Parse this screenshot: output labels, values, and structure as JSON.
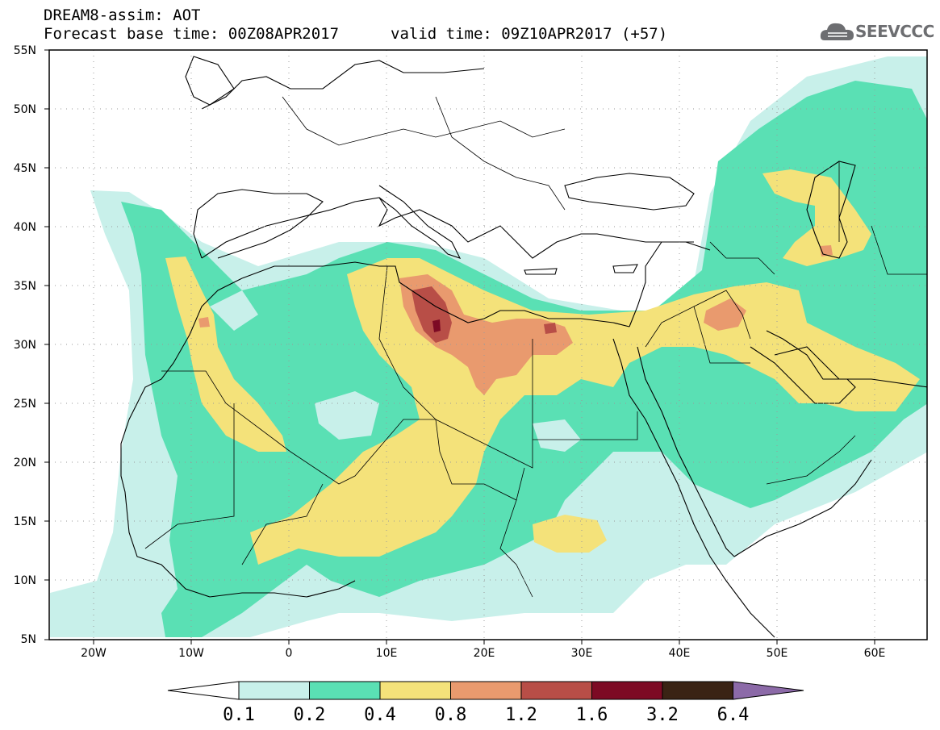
{
  "header": {
    "title_line1": "DREAM8-assim: AOT",
    "title_line2": "Forecast base time: 00Z08APR2017",
    "valid_time": "valid time: 09Z10APR2017 (+57)"
  },
  "logo": {
    "text": "SEEVCCC",
    "icon": "cloud-icon"
  },
  "map": {
    "lat_labels": [
      "55N",
      "50N",
      "45N",
      "40N",
      "35N",
      "30N",
      "25N",
      "20N",
      "15N",
      "10N",
      "5N"
    ],
    "lon_labels": [
      "20W",
      "10W",
      "0",
      "10E",
      "20E",
      "30E",
      "40E",
      "50E",
      "60E"
    ],
    "lat_range": [
      5,
      55
    ],
    "lon_range": [
      -25,
      65
    ],
    "grid": "dotted"
  },
  "colorbar": {
    "levels": [
      "0.1",
      "0.2",
      "0.4",
      "0.8",
      "1.2",
      "1.6",
      "3.2",
      "6.4"
    ],
    "colors": [
      "#c8f0ea",
      "#5ae0b4",
      "#f4e27a",
      "#e99a6e",
      "#b84e47",
      "#7d0a24",
      "#3a2314",
      "#8c6aa8"
    ],
    "under_color": "#ffffff",
    "over_color": "#8c6aa8"
  }
}
